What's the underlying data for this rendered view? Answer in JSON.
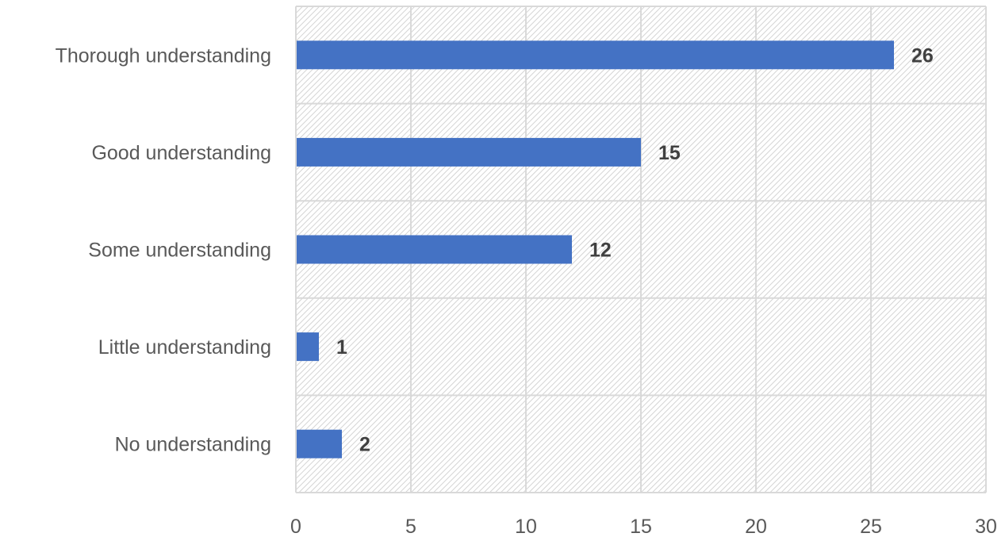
{
  "chart_data": {
    "type": "bar",
    "orientation": "horizontal",
    "categories": [
      "Thorough understanding",
      "Good understanding",
      "Some understanding",
      "Little understanding",
      "No understanding"
    ],
    "values": [
      26,
      15,
      12,
      1,
      2
    ],
    "xlim": [
      0,
      30
    ],
    "xticks": [
      "0",
      "5",
      "10",
      "15",
      "20",
      "25",
      "30"
    ],
    "grid": true,
    "data_labels": true,
    "bar_color": "#4472C4",
    "plot_background": "hatched light gray"
  }
}
